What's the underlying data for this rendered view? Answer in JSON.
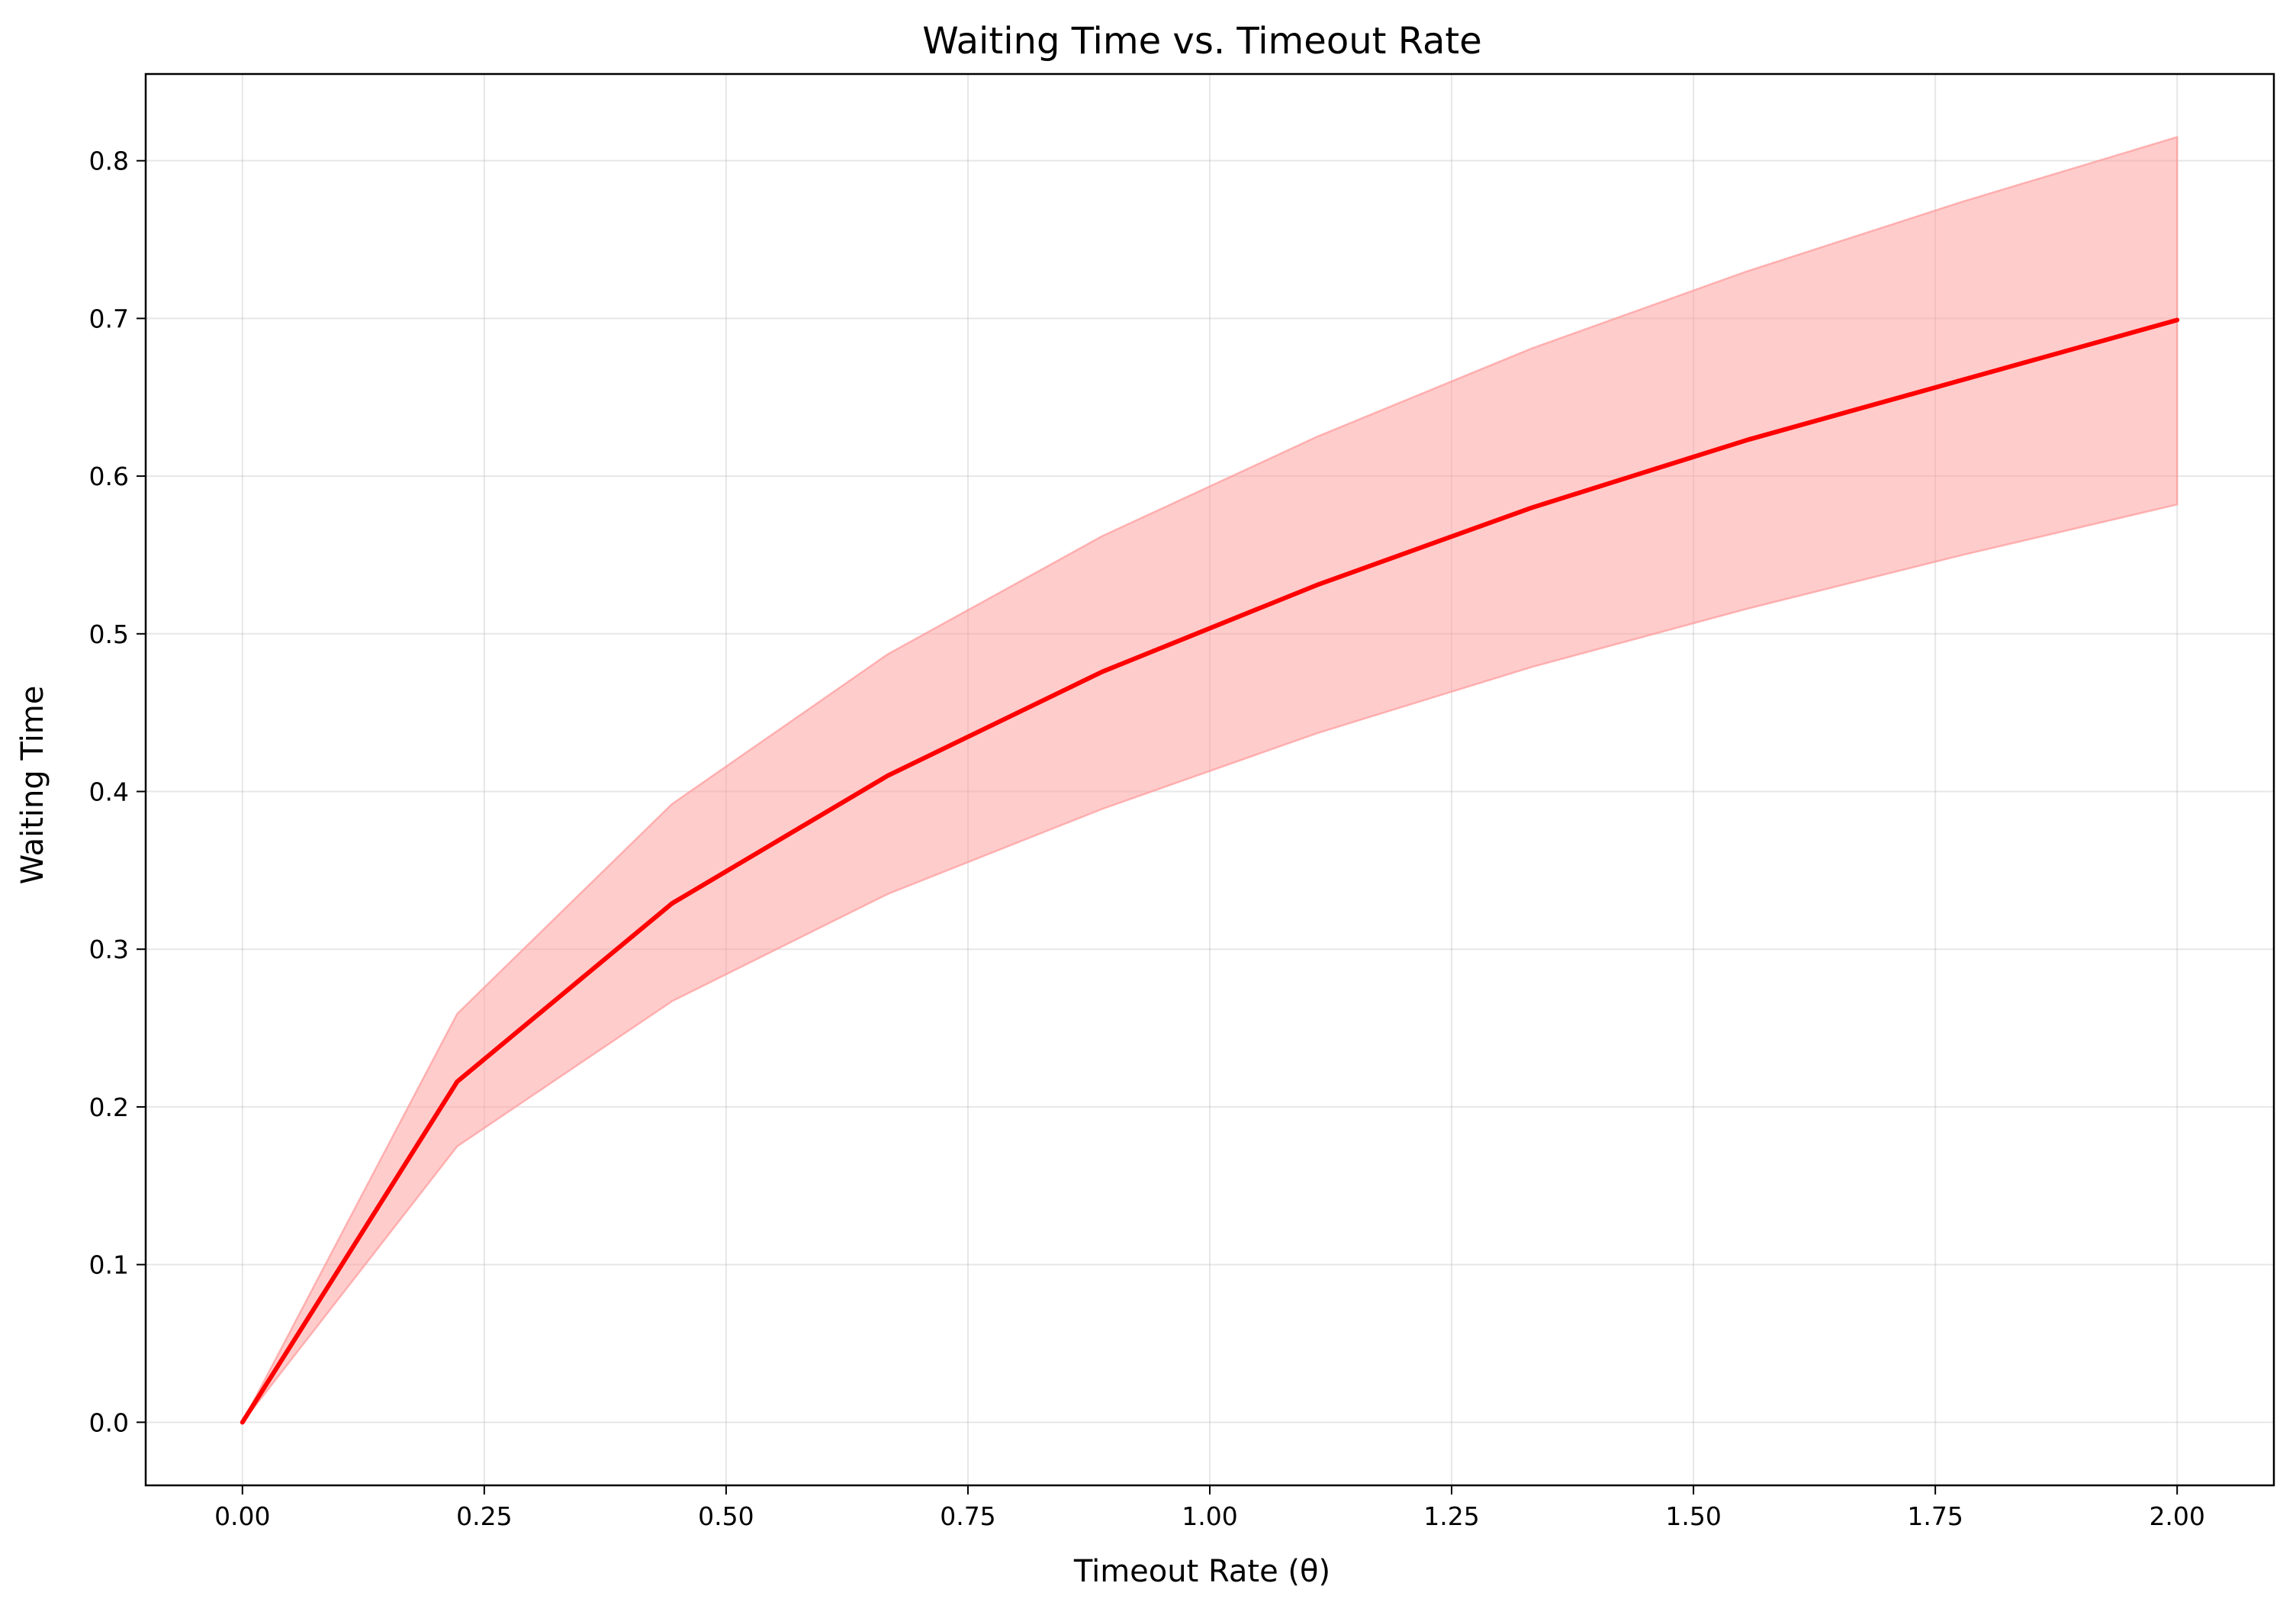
{
  "chart_data": {
    "type": "line",
    "title": "Waiting Time vs. Timeout Rate",
    "xlabel": "Timeout Rate (θ)",
    "ylabel": "Waiting Time",
    "xlim": [
      -0.1,
      2.1
    ],
    "ylim": [
      -0.04,
      0.855
    ],
    "grid": true,
    "x_ticks": [
      0.0,
      0.25,
      0.5,
      0.75,
      1.0,
      1.25,
      1.5,
      1.75,
      2.0
    ],
    "x_tick_labels": [
      "0.00",
      "0.25",
      "0.50",
      "0.75",
      "1.00",
      "1.25",
      "1.50",
      "1.75",
      "2.00"
    ],
    "y_ticks": [
      0.0,
      0.1,
      0.2,
      0.3,
      0.4,
      0.5,
      0.6,
      0.7,
      0.8
    ],
    "y_tick_labels": [
      "0.0",
      "0.1",
      "0.2",
      "0.3",
      "0.4",
      "0.5",
      "0.6",
      "0.7",
      "0.8"
    ],
    "x": [
      0.0,
      0.222,
      0.444,
      0.667,
      0.889,
      1.111,
      1.333,
      1.556,
      1.778,
      2.0
    ],
    "series": [
      {
        "values": [
          0.0,
          0.216,
          0.329,
          0.41,
          0.476,
          0.531,
          0.58,
          0.623,
          0.661,
          0.699
        ],
        "band_lower": [
          0.0,
          0.175,
          0.267,
          0.335,
          0.389,
          0.437,
          0.479,
          0.516,
          0.55,
          0.582
        ],
        "band_upper": [
          0.0,
          0.259,
          0.392,
          0.487,
          0.562,
          0.625,
          0.681,
          0.73,
          0.774,
          0.815
        ],
        "color": "#ff0000",
        "band_color": "#ff9999"
      }
    ]
  }
}
